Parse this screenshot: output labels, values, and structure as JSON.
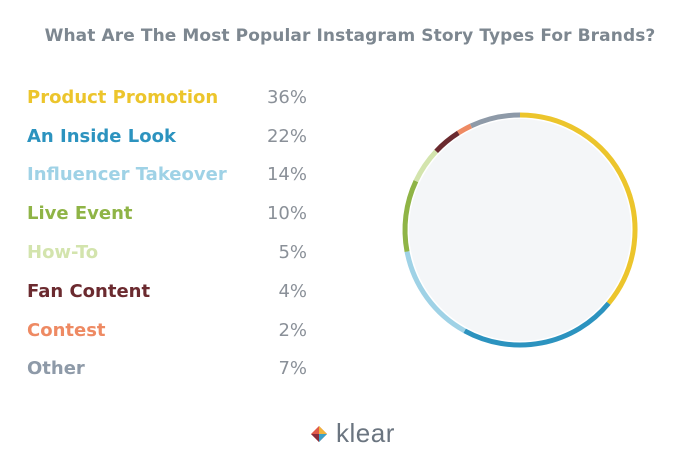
{
  "chart_data": {
    "type": "pie",
    "title": "What Are The Most Popular Instagram Story Types For Brands?",
    "categories": [
      "Product Promotion",
      "An Inside Look",
      "Influencer Takeover",
      "Live Event",
      "How-To",
      "Fan Content",
      "Contest",
      "Other"
    ],
    "values": [
      36,
      22,
      14,
      10,
      5,
      4,
      2,
      7
    ],
    "labels": [
      "36%",
      "22%",
      "14%",
      "10%",
      "5%",
      "4%",
      "2%",
      "7%"
    ],
    "colors": [
      "#ecc52c",
      "#2c93bf",
      "#9fd2e6",
      "#8fb446",
      "#d3e4ad",
      "#6b2a2f",
      "#ee8a63",
      "#8e9aa8"
    ],
    "style": "ring"
  },
  "brand": {
    "name": "klear",
    "icon": "klear-logo-icon"
  }
}
